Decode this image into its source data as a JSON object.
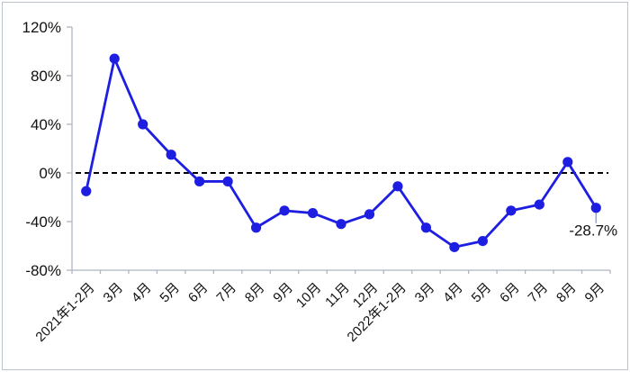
{
  "chart_data": {
    "type": "line",
    "title": "",
    "xlabel": "",
    "ylabel": "",
    "categories": [
      "2021年1-2月",
      "3月",
      "4月",
      "5月",
      "6月",
      "7月",
      "8月",
      "9月",
      "10月",
      "11月",
      "12月",
      "2022年1-2月",
      "3月",
      "4月",
      "5月",
      "6月",
      "7月",
      "8月",
      "9月"
    ],
    "values": [
      -15,
      94,
      40,
      15,
      -7,
      -7,
      -45,
      -31,
      -33,
      -42,
      -34,
      -11,
      -45,
      -61,
      -56,
      -31,
      -26,
      9,
      -28.7
    ],
    "ylim": [
      -80,
      120
    ],
    "ytick_labels": [
      "120%",
      "80%",
      "40%",
      "0%",
      "-40%",
      "-80%"
    ],
    "ytick_values": [
      120,
      80,
      40,
      0,
      -40,
      -80
    ],
    "gridlines": false,
    "legend_position": "none",
    "zero_reference_line": true,
    "last_point_label": "-28.7%",
    "colors": {
      "line": "#1e1ee3",
      "marker": "#1e1ee3",
      "zero_line": "#000000",
      "axis": "#aeb5c2",
      "tick": "#aeb5c2",
      "label_text": "#111111",
      "leader_line": "#9aa8c8",
      "frame_border": "#bcc3cf",
      "background": "#ffffff"
    }
  }
}
